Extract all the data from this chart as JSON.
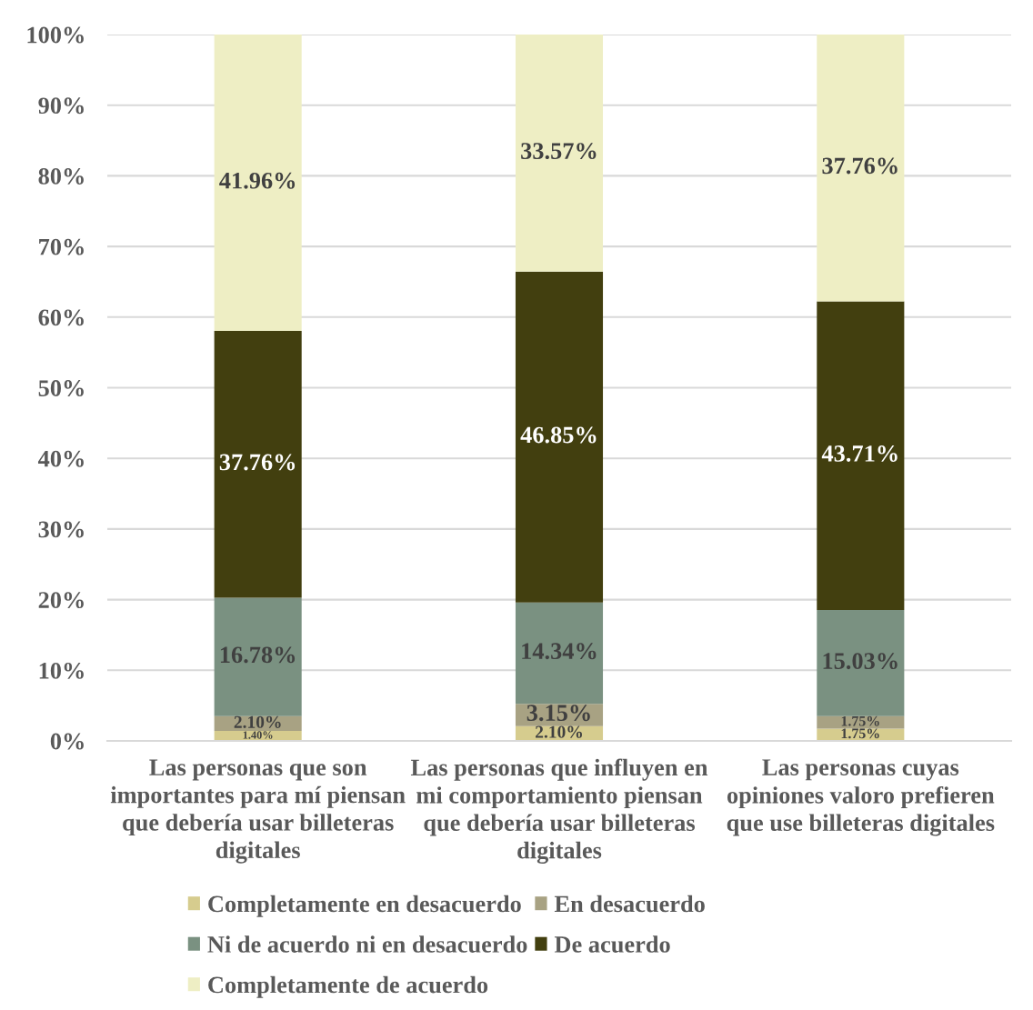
{
  "chart_data": {
    "type": "bar",
    "stacked": true,
    "categories": [
      "Las personas que son\nimportantes para mí piensan\nque debería usar billeteras\ndigitales",
      "Las personas que influyen en\nmi comportamiento piensan\nque debería usar billeteras\ndigitales",
      "Las personas cuyas\nopiniones valoro prefieren\nque use billeteras digitales"
    ],
    "series": [
      {
        "name": "Completamente en desacuerdo",
        "color": "#d6cc8e",
        "values": [
          1.4,
          2.1,
          1.75
        ],
        "value_labels": [
          "1.40%",
          "2.10%",
          "1.75%"
        ]
      },
      {
        "name": "En desacuerdo",
        "color": "#a8a283",
        "values": [
          2.1,
          3.15,
          1.75
        ],
        "value_labels": [
          "2.10%",
          "3.15%",
          "1.75%"
        ]
      },
      {
        "name": "Ni de acuerdo ni en desacuerdo",
        "color": "#7a9181",
        "values": [
          16.78,
          14.34,
          15.03
        ],
        "value_labels": [
          "16.78%",
          "14.34%",
          "15.03%"
        ]
      },
      {
        "name": "De acuerdo",
        "color": "#423f0f",
        "values": [
          37.76,
          46.85,
          43.71
        ],
        "value_labels": [
          "37.76%",
          "46.85%",
          "43.71%"
        ]
      },
      {
        "name": "Completamente de acuerdo",
        "color": "#eeeec4",
        "values": [
          41.96,
          33.57,
          37.76
        ],
        "value_labels": [
          "41.96%",
          "33.57%",
          "37.76%"
        ]
      }
    ],
    "ylim": [
      0,
      100
    ],
    "yticks": [
      {
        "value": 0,
        "label": "0%"
      },
      {
        "value": 10,
        "label": "10%"
      },
      {
        "value": 20,
        "label": "20%"
      },
      {
        "value": 30,
        "label": "30%"
      },
      {
        "value": 40,
        "label": "40%"
      },
      {
        "value": 50,
        "label": "50%"
      },
      {
        "value": 60,
        "label": "60%"
      },
      {
        "value": 70,
        "label": "70%"
      },
      {
        "value": 80,
        "label": "80%"
      },
      {
        "value": 90,
        "label": "90%"
      },
      {
        "value": 100,
        "label": "100%"
      }
    ],
    "grid": "y",
    "legend": "bottom"
  }
}
